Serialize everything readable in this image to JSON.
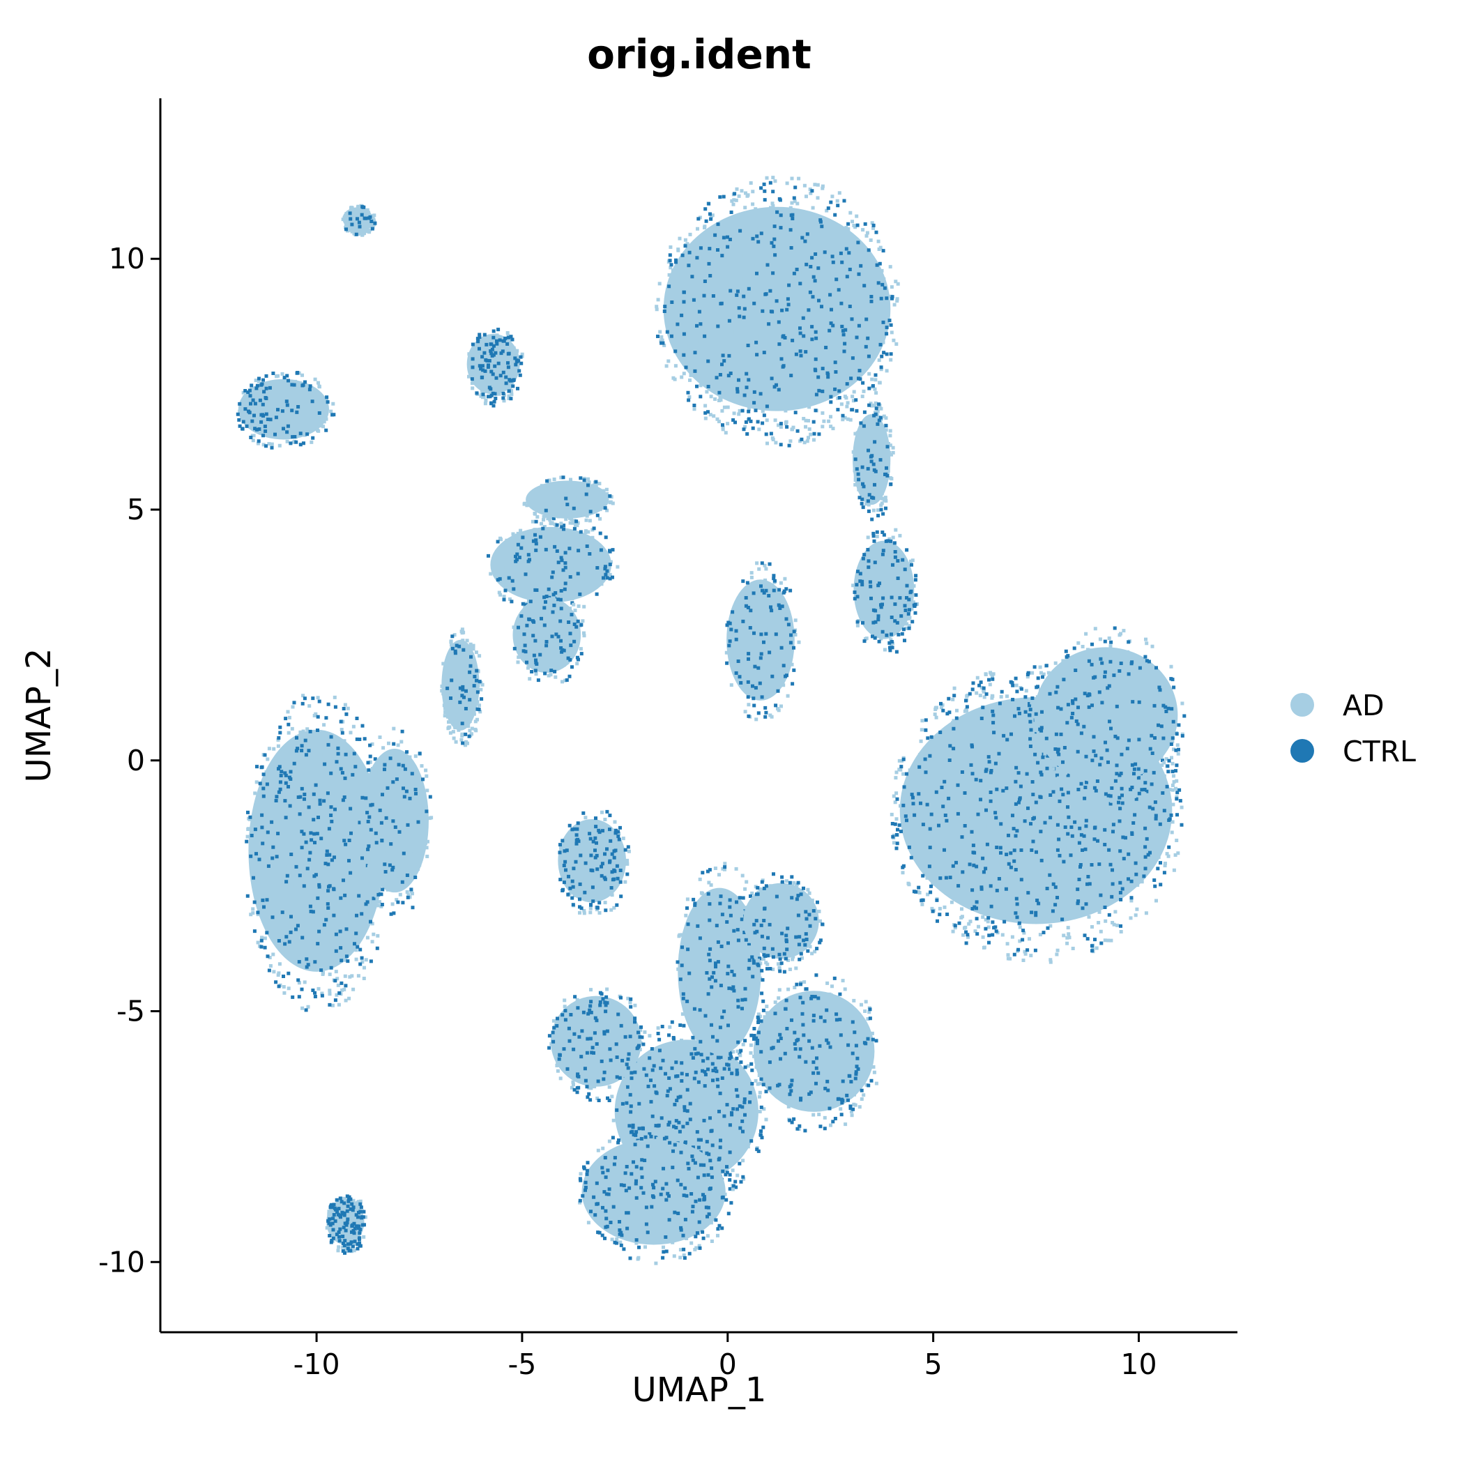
{
  "chart_data": {
    "type": "scatter",
    "title": "orig.ident",
    "xlabel": "UMAP_1",
    "ylabel": "UMAP_2",
    "xlim": [
      -13.8,
      12.4
    ],
    "ylim": [
      -11.4,
      13.2
    ],
    "x_ticks": [
      -10,
      -5,
      0,
      5,
      10
    ],
    "x_tick_labels": [
      "-10",
      "-5",
      "0",
      "5",
      "10"
    ],
    "y_ticks": [
      -10,
      -5,
      0,
      5,
      10
    ],
    "y_tick_labels": [
      "-10",
      "-5",
      "0",
      "5",
      "10"
    ],
    "grid": false,
    "legend_position": "right",
    "series": [
      {
        "name": "AD",
        "color": "#a6cee3"
      },
      {
        "name": "CTRL",
        "color": "#1f78b4"
      }
    ],
    "clusters": [
      {
        "cx": 1.2,
        "cy": 9.0,
        "rx": 3.0,
        "ry": 2.7,
        "ctrl": 0.35
      },
      {
        "cx": 7.5,
        "cy": -1.0,
        "rx": 3.6,
        "ry": 3.0,
        "ctrl": 0.4
      },
      {
        "cx": 9.2,
        "cy": 0.9,
        "rx": 1.9,
        "ry": 1.8,
        "ctrl": 0.4
      },
      {
        "cx": -10.0,
        "cy": -1.8,
        "rx": 1.8,
        "ry": 3.2,
        "ctrl": 0.45
      },
      {
        "cx": -8.1,
        "cy": -1.2,
        "rx": 0.9,
        "ry": 1.9,
        "ctrl": 0.35
      },
      {
        "cx": -1.0,
        "cy": -7.0,
        "rx": 1.9,
        "ry": 1.9,
        "ctrl": 0.55
      },
      {
        "cx": -1.8,
        "cy": -8.6,
        "rx": 1.9,
        "ry": 1.4,
        "ctrl": 0.55
      },
      {
        "cx": -3.2,
        "cy": -5.6,
        "rx": 1.2,
        "ry": 1.2,
        "ctrl": 0.6
      },
      {
        "cx": -0.2,
        "cy": -4.2,
        "rx": 1.1,
        "ry": 2.2,
        "ctrl": 0.5
      },
      {
        "cx": 2.1,
        "cy": -5.8,
        "rx": 1.6,
        "ry": 1.6,
        "ctrl": 0.45
      },
      {
        "cx": 1.3,
        "cy": -3.2,
        "rx": 1.0,
        "ry": 1.0,
        "ctrl": 0.35
      },
      {
        "cx": -4.3,
        "cy": 3.9,
        "rx": 1.6,
        "ry": 1.0,
        "ctrl": 0.45
      },
      {
        "cx": -4.4,
        "cy": 2.5,
        "rx": 0.9,
        "ry": 1.0,
        "ctrl": 0.4
      },
      {
        "cx": -3.9,
        "cy": 5.2,
        "rx": 1.1,
        "ry": 0.5,
        "ctrl": 0.1
      },
      {
        "cx": -5.7,
        "cy": 7.9,
        "rx": 0.7,
        "ry": 0.8,
        "ctrl": 0.45
      },
      {
        "cx": -10.8,
        "cy": 7.0,
        "rx": 1.2,
        "ry": 0.8,
        "ctrl": 0.45
      },
      {
        "cx": -9.0,
        "cy": 10.8,
        "rx": 0.4,
        "ry": 0.3,
        "ctrl": 0.15
      },
      {
        "cx": 0.8,
        "cy": 2.4,
        "rx": 0.9,
        "ry": 1.6,
        "ctrl": 0.45
      },
      {
        "cx": 3.8,
        "cy": 3.4,
        "rx": 0.8,
        "ry": 1.3,
        "ctrl": 0.45
      },
      {
        "cx": -3.3,
        "cy": -2.0,
        "rx": 0.9,
        "ry": 1.1,
        "ctrl": 0.55
      },
      {
        "cx": -9.3,
        "cy": -9.2,
        "rx": 0.5,
        "ry": 0.6,
        "ctrl": 0.5
      },
      {
        "cx": -6.5,
        "cy": 1.5,
        "rx": 0.5,
        "ry": 1.2,
        "ctrl": 0.2
      },
      {
        "cx": 3.5,
        "cy": 6.0,
        "rx": 0.5,
        "ry": 1.2,
        "ctrl": 0.3
      }
    ]
  }
}
